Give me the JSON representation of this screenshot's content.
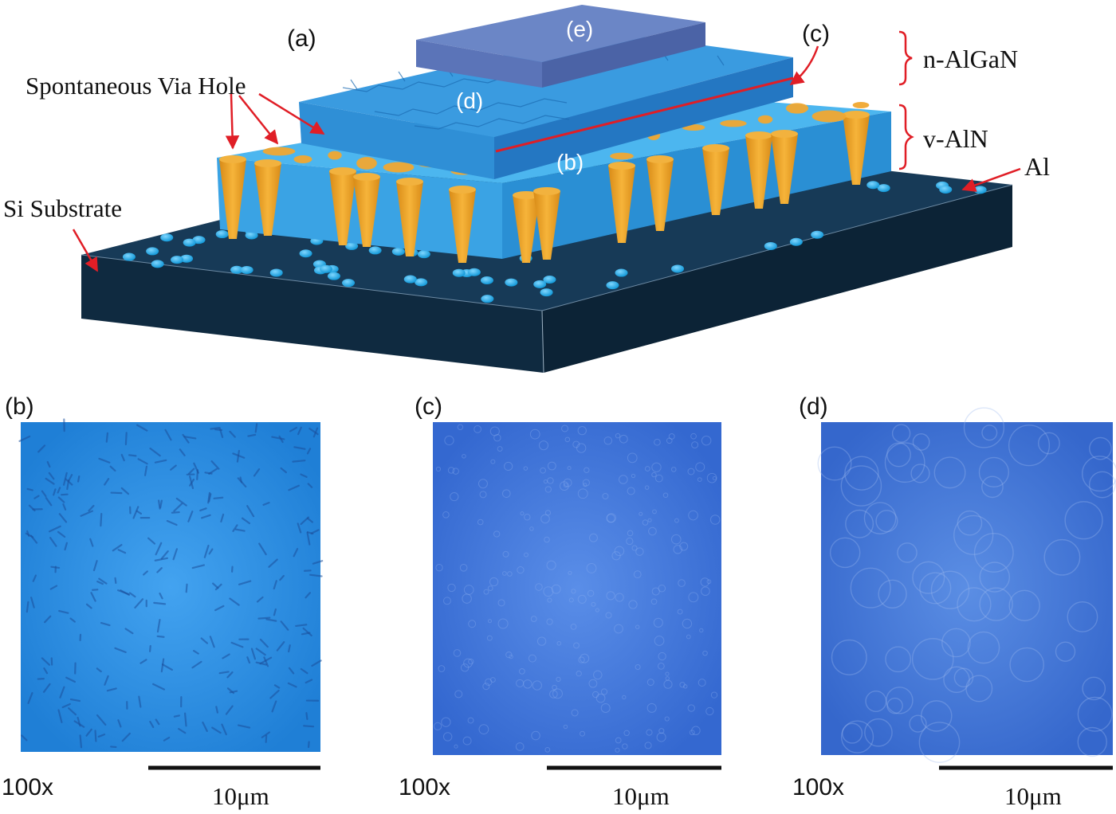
{
  "schematic": {
    "panel_label": "(a)",
    "layer_labels": {
      "n_algan": "n-AlGaN",
      "v_aln": "v-AlN",
      "al": "Al",
      "si_substrate": "Si Substrate",
      "via_hole": "Spontaneous Via Hole"
    },
    "inset_tags": {
      "b": "(b)",
      "c": "(c)",
      "d": "(d)",
      "e": "(e)"
    }
  },
  "micrographs": [
    {
      "panel_label": "(b)",
      "magnification": "100x",
      "scale_bar": "10μm",
      "color": "#2f8fe0"
    },
    {
      "panel_label": "(c)",
      "magnification": "100x",
      "scale_bar": "10μm",
      "color": "#3f74d8"
    },
    {
      "panel_label": "(d)",
      "magnification": "100x",
      "scale_bar": "10μm",
      "color": "#3f74d4"
    }
  ],
  "colors": {
    "substrate": "#12304a",
    "al_dot": "#1aa9e6",
    "v_aln": "#3aa7e6",
    "n_algan": "#2f86d2",
    "electrode": "#5673b8",
    "via": "#f0a830",
    "callout": "#e01e26"
  }
}
